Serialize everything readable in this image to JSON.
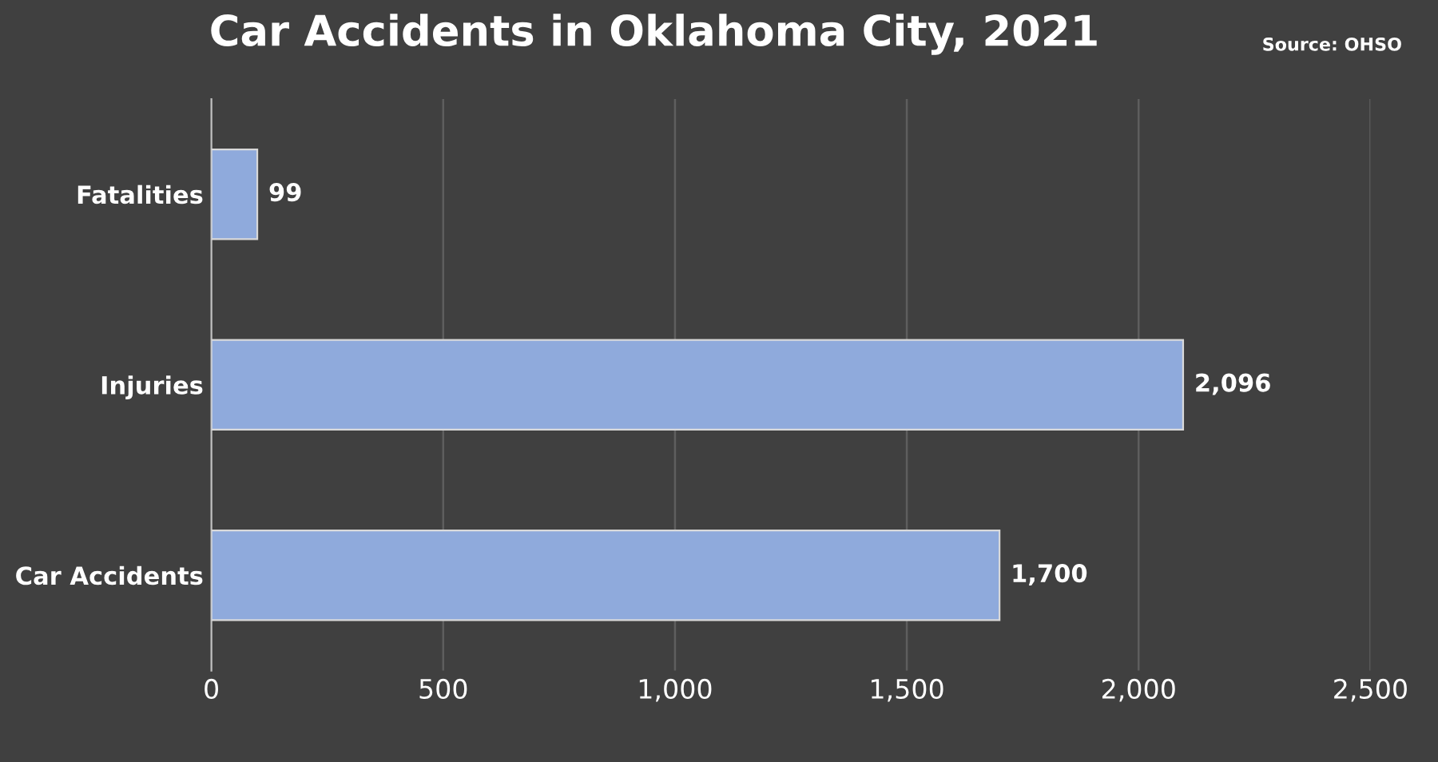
{
  "chart_data": {
    "type": "bar",
    "orientation": "horizontal",
    "title": "Car Accidents in Oklahoma City, 2021",
    "annotations": [
      "Source: OHSO"
    ],
    "categories": [
      "Fatalities",
      "Injuries",
      "Car Accidents"
    ],
    "values": [
      99,
      2096,
      1700
    ],
    "value_labels": [
      "99",
      "2,096",
      "1,700"
    ],
    "color": "#8faadc",
    "xlim": [
      0,
      2500
    ],
    "xticks": [
      0,
      500,
      {
        "value": 1000,
        "label": "1,000"
      },
      {
        "value": 1500,
        "label": "1,500"
      },
      {
        "value": 2000,
        "label": "2,000"
      },
      {
        "value": 2500,
        "label": "2,500"
      }
    ],
    "grid": "x",
    "legend": false
  }
}
